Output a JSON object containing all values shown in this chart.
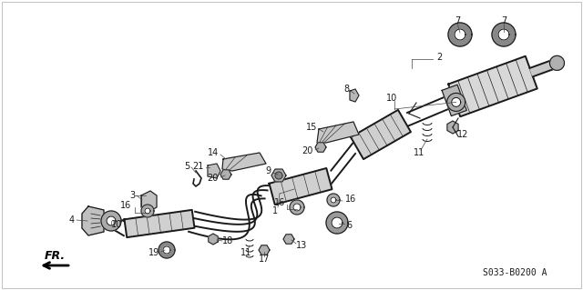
{
  "background_color": "#ffffff",
  "diagram_code": "S033-B0200 A",
  "line_color": "#1a1a1a",
  "text_color": "#1a1a1a",
  "font_size_label": 7,
  "font_size_code": 7,
  "pipe_color": "#e8e8e8",
  "part_color": "#c0c0c0",
  "dark_part": "#888888"
}
